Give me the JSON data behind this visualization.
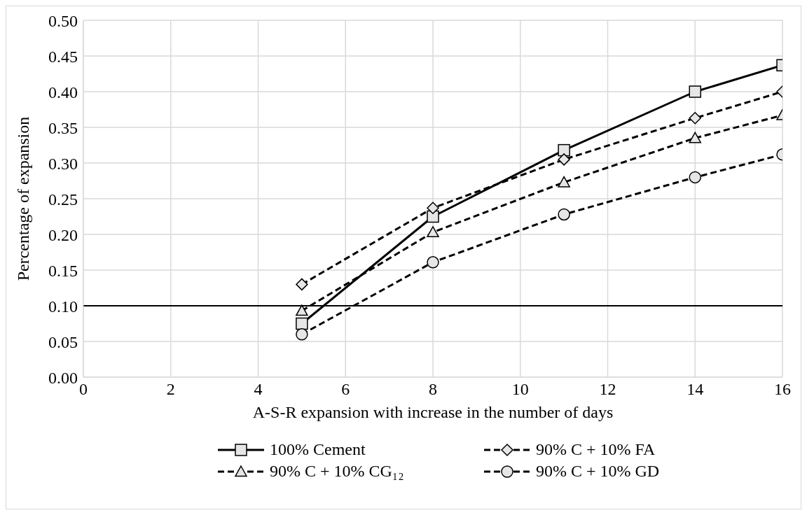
{
  "chart_data": {
    "type": "line",
    "xlabel": "A-S-R expansion with increase in the number of days",
    "ylabel": "Percentage of expansion",
    "x": [
      5,
      8,
      11,
      14,
      16
    ],
    "series": [
      {
        "name": "100% Cement",
        "color": "#000000",
        "marker": "square",
        "line_style": "solid",
        "values": [
          0.075,
          0.225,
          0.318,
          0.4,
          0.437
        ]
      },
      {
        "name": "90% C + 10% FA",
        "color": "#000000",
        "marker": "diamond",
        "line_style": "dashed",
        "values": [
          0.13,
          0.237,
          0.305,
          0.363,
          0.4
        ]
      },
      {
        "name": "90% C + 10% CG₁₂",
        "color": "#000000",
        "marker": "triangle",
        "line_style": "dashed",
        "values": [
          0.093,
          0.203,
          0.273,
          0.335,
          0.367
        ]
      },
      {
        "name": "90% C + 10% GD",
        "color": "#000000",
        "marker": "circle",
        "line_style": "dashed",
        "values": [
          0.06,
          0.161,
          0.228,
          0.28,
          0.312
        ]
      }
    ],
    "xlim": [
      0,
      16
    ],
    "xticks": [
      0,
      2,
      4,
      6,
      8,
      10,
      12,
      14,
      16
    ],
    "ylim": [
      0,
      0.5
    ],
    "yticks": [
      {
        "value": 0,
        "label": "0.00"
      },
      {
        "value": 0.05,
        "label": "0.05"
      },
      {
        "value": 0.1,
        "label": "0.10"
      },
      {
        "value": 0.15,
        "label": "0.15"
      },
      {
        "value": 0.2,
        "label": "0.20"
      },
      {
        "value": 0.25,
        "label": "0.25"
      },
      {
        "value": 0.3,
        "label": "0.30"
      },
      {
        "value": 0.35,
        "label": "0.35"
      },
      {
        "value": 0.4,
        "label": "0.40"
      },
      {
        "value": 0.45,
        "label": "0.45"
      },
      {
        "value": 0.5,
        "label": "0.50"
      }
    ],
    "ref_lines": [
      {
        "axis": "y",
        "value": 0.1,
        "color": "#000000"
      }
    ],
    "grid": true,
    "legend": "bottom"
  }
}
